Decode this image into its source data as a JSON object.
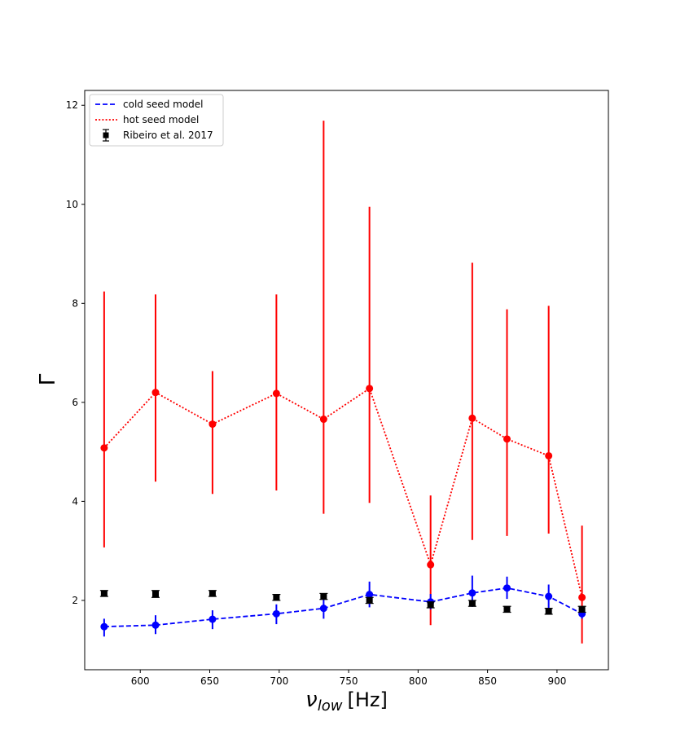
{
  "chart_data": {
    "type": "scatter",
    "title": "",
    "xlabel_symbol": "ν",
    "xlabel_subscript": "low",
    "xlabel_unit": "[Hz]",
    "ylabel": "Γ",
    "xlim": [
      560,
      937
    ],
    "ylim": [
      0.6,
      12.3
    ],
    "xticks": [
      600,
      650,
      700,
      750,
      800,
      850,
      900
    ],
    "yticks": [
      2,
      4,
      6,
      8,
      10,
      12
    ],
    "legend_location": "upper-left",
    "series": [
      {
        "name": "cold seed model",
        "color": "#0000ff",
        "line_style": "dashed",
        "marker": "circle",
        "x": [
          574,
          611,
          652,
          698,
          732,
          765,
          809,
          839,
          864,
          894,
          918
        ],
        "y": [
          1.47,
          1.5,
          1.62,
          1.73,
          1.84,
          2.12,
          1.97,
          2.15,
          2.25,
          2.08,
          1.73
        ],
        "yerr_low": [
          1.27,
          1.32,
          1.42,
          1.52,
          1.63,
          1.86,
          1.82,
          1.87,
          2.03,
          1.82,
          1.63
        ],
        "yerr_high": [
          1.63,
          1.7,
          1.8,
          1.92,
          2.05,
          2.38,
          2.13,
          2.5,
          2.48,
          2.32,
          1.86
        ]
      },
      {
        "name": "hot seed model",
        "color": "#ff0000",
        "line_style": "dotted",
        "marker": "circle",
        "x": [
          574,
          611,
          652,
          698,
          732,
          765,
          809,
          839,
          864,
          894,
          918
        ],
        "y": [
          5.08,
          6.2,
          5.56,
          6.18,
          5.66,
          6.28,
          2.72,
          5.68,
          5.26,
          4.92,
          2.06
        ],
        "yerr_low": [
          3.07,
          4.4,
          4.15,
          4.22,
          3.75,
          3.97,
          1.5,
          3.22,
          3.3,
          3.35,
          1.13
        ],
        "yerr_high": [
          8.24,
          8.18,
          6.63,
          8.18,
          11.69,
          9.95,
          4.12,
          8.82,
          7.88,
          7.95,
          3.51
        ]
      },
      {
        "name": "Ribeiro et al. 2017",
        "color": "#000000",
        "line_style": "none",
        "marker": "square",
        "x": [
          574,
          611,
          652,
          698,
          732,
          765,
          809,
          839,
          864,
          894,
          918
        ],
        "y": [
          2.14,
          2.13,
          2.14,
          2.06,
          2.08,
          2.0,
          1.91,
          1.94,
          1.82,
          1.78,
          1.82
        ],
        "yerr_low": [
          2.08,
          2.06,
          2.08,
          2.0,
          2.02,
          1.94,
          1.85,
          1.88,
          1.76,
          1.72,
          1.76
        ],
        "yerr_high": [
          2.2,
          2.2,
          2.2,
          2.12,
          2.14,
          2.06,
          1.97,
          2.0,
          1.88,
          1.84,
          1.88
        ]
      }
    ]
  }
}
